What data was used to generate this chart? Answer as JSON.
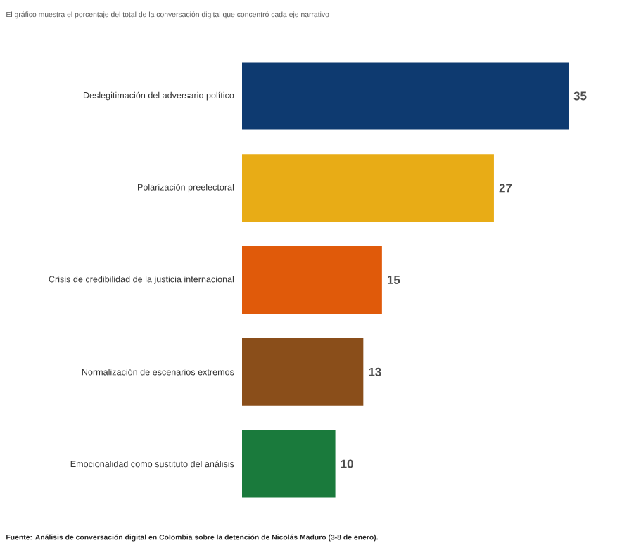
{
  "chart_data": {
    "type": "bar",
    "orientation": "horizontal",
    "title": "El gráfico muestra el porcentaje del total de la conversación digital que concentró cada eje narrativo",
    "categories": [
      "Deslegitimación del adversario político",
      "Polarización preelectoral",
      "Crisis de credibilidad de la justicia internacional",
      "Normalización de escenarios extremos",
      "Emocionalidad como sustituto del análisis"
    ],
    "values": [
      35,
      27,
      15,
      13,
      10
    ],
    "colors": [
      "#0e3a70",
      "#e8ac16",
      "#e05a0a",
      "#8a4e1a",
      "#1a7a3c"
    ],
    "data_labels": true,
    "tick_labels": "y",
    "annotations": [
      "**Fuente:  Análisis de conversación digital en Colombia sobre la detención de Nicolás Maduro (3-8 de enero).**"
    ]
  }
}
